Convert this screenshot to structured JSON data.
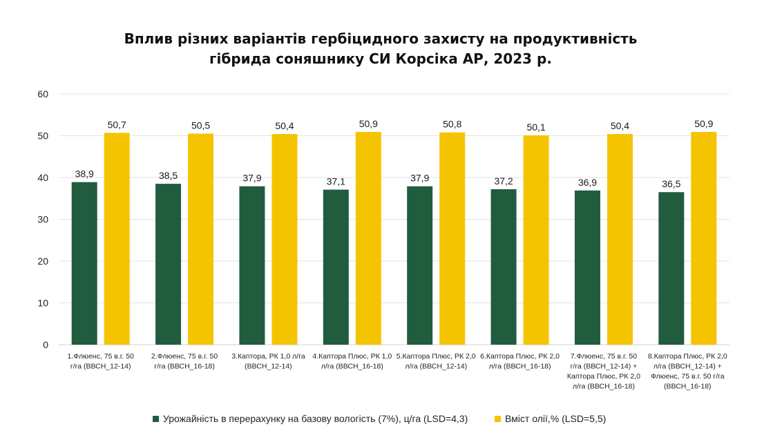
{
  "colors": {
    "yield": "#215c3f",
    "oil": "#f5c400",
    "grid": "#e3e3e3"
  },
  "chart_data": {
    "type": "bar",
    "title": [
      "Вплив різних варіантів гербіцидного захисту на продуктивність",
      "гібрида соняшнику СИ Корсіка АР, 2023 р."
    ],
    "xlabel": "",
    "ylabel": "",
    "ylim": [
      0,
      60
    ],
    "yticks": [
      0,
      10,
      20,
      30,
      40,
      50,
      60
    ],
    "grid": true,
    "legend_position": "bottom",
    "categories": [
      [
        "1.Флюенс, 75 в.г. 50",
        "г/га (ВВСН_12-14)"
      ],
      [
        "2.Флюенс, 75 в.г. 50",
        "г/га (ВВСН_16-18)"
      ],
      [
        "3.Каптора, РК 1,0 л/га",
        "(ВВСН_12-14)"
      ],
      [
        "4.Каптора Плюс, РК 1,0",
        "л/га (ВВСН_16-18)"
      ],
      [
        "5.Каптора Плюс, РК 2,0",
        "л/га (ВВСН_12-14)"
      ],
      [
        "6.Каптора Плюс, РК 2,0",
        "л/га (ВВСН_16-18)"
      ],
      [
        "7.Флюенс, 75 в.г. 50",
        "г/га (ВВСН_12-14) +",
        "Каптора Плюс, РК 2,0",
        "л/га (ВВСН_16-18)"
      ],
      [
        "8.Каптора Плюс, РК 2,0",
        "л/га (ВВСН_12-14) +",
        "Флюенс, 75 в.г. 50 г/га",
        "(ВВСН_16-18)"
      ]
    ],
    "series": [
      {
        "name": "Урожайність в перерахунку на базову вологість (7%), ц/га (LSD=4,3)",
        "values": [
          38.9,
          38.5,
          37.9,
          37.1,
          37.9,
          37.2,
          36.9,
          36.5
        ],
        "labels": [
          "38,9",
          "38,5",
          "37,9",
          "37,1",
          "37,9",
          "37,2",
          "36,9",
          "36,5"
        ]
      },
      {
        "name": "Вміст олії,% (LSD=5,5)",
        "values": [
          50.7,
          50.5,
          50.4,
          50.9,
          50.8,
          50.1,
          50.4,
          50.9
        ],
        "labels": [
          "50,7",
          "50,5",
          "50,4",
          "50,9",
          "50,8",
          "50,1",
          "50,4",
          "50,9"
        ]
      }
    ]
  }
}
